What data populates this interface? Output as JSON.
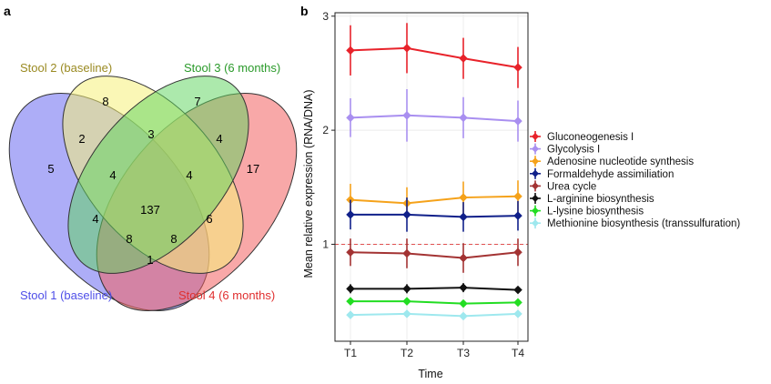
{
  "panel_a": {
    "letter": "a",
    "sets": [
      {
        "label": "Stool 1 (baseline)",
        "color": "#4f4fe8",
        "fill": "#7b7bf2"
      },
      {
        "label": "Stool 2 (baseline)",
        "color": "#9a8a22",
        "fill": "#f6f07a"
      },
      {
        "label": "Stool 3 (6 months)",
        "color": "#2a9a2a",
        "fill": "#5fd45f"
      },
      {
        "label": "Stool 4 (6 months)",
        "color": "#e03030",
        "fill": "#f26060"
      }
    ],
    "regions": {
      "s1_only": "5",
      "s2_only": "8",
      "s3_only": "7",
      "s4_only": "17",
      "s1_s2": "2",
      "s2_s3": "3",
      "s3_s4": "4",
      "s1_s2_s3": "4",
      "s2_s3_s4": "4",
      "s1_s3": "4",
      "s2_s4": "6",
      "all": "137",
      "s1_s3_s4": "8",
      "s1_s2_s4": "8",
      "s1_s4": "1"
    }
  },
  "chart_data": {
    "type": "line",
    "letter": "b",
    "categories": [
      "T1",
      "T2",
      "T3",
      "T4"
    ],
    "xlabel": "Time",
    "ylabel": "Mean relative expression (RNA/DNA)",
    "yticks": [
      "1",
      "2",
      "3"
    ],
    "ylim": [
      0.15,
      3.03
    ],
    "reference_line": 1,
    "grid": true,
    "legend_position": "right",
    "series": [
      {
        "name": "Gluconeogenesis I",
        "color": "#e8222a",
        "values": [
          2.7,
          2.72,
          2.63,
          2.55
        ],
        "err": [
          0.22,
          0.22,
          0.18,
          0.18
        ]
      },
      {
        "name": "Glycolysis I",
        "color": "#a98ff0",
        "values": [
          2.11,
          2.13,
          2.11,
          2.08
        ],
        "err": [
          0.17,
          0.23,
          0.18,
          0.18
        ]
      },
      {
        "name": "Adenosine nucleotide synthesis",
        "color": "#f5a21a",
        "values": [
          1.39,
          1.36,
          1.41,
          1.42
        ],
        "err": [
          0.14,
          0.14,
          0.14,
          0.14
        ]
      },
      {
        "name": "Formaldehyde assimiliation",
        "color": "#10208a",
        "values": [
          1.26,
          1.26,
          1.24,
          1.25
        ],
        "err": [
          0.13,
          0.15,
          0.13,
          0.13
        ]
      },
      {
        "name": "Urea cycle",
        "color": "#a33333",
        "values": [
          0.93,
          0.92,
          0.88,
          0.93
        ],
        "err": [
          0.12,
          0.13,
          0.13,
          0.12
        ]
      },
      {
        "name": "L-arginine biosynthesis",
        "color": "#111111",
        "values": [
          0.61,
          0.61,
          0.62,
          0.6
        ],
        "err": [
          0.04,
          0.04,
          0.04,
          0.03
        ]
      },
      {
        "name": "L-lysine biosynthesis",
        "color": "#22dd22",
        "values": [
          0.5,
          0.5,
          0.48,
          0.49
        ],
        "err": [
          0.03,
          0.03,
          0.03,
          0.03
        ]
      },
      {
        "name": "Methionine biosynthesis (transsulfuration)",
        "color": "#9ee8ee",
        "values": [
          0.38,
          0.39,
          0.37,
          0.39
        ],
        "err": [
          0.03,
          0.03,
          0.03,
          0.03
        ]
      }
    ]
  }
}
